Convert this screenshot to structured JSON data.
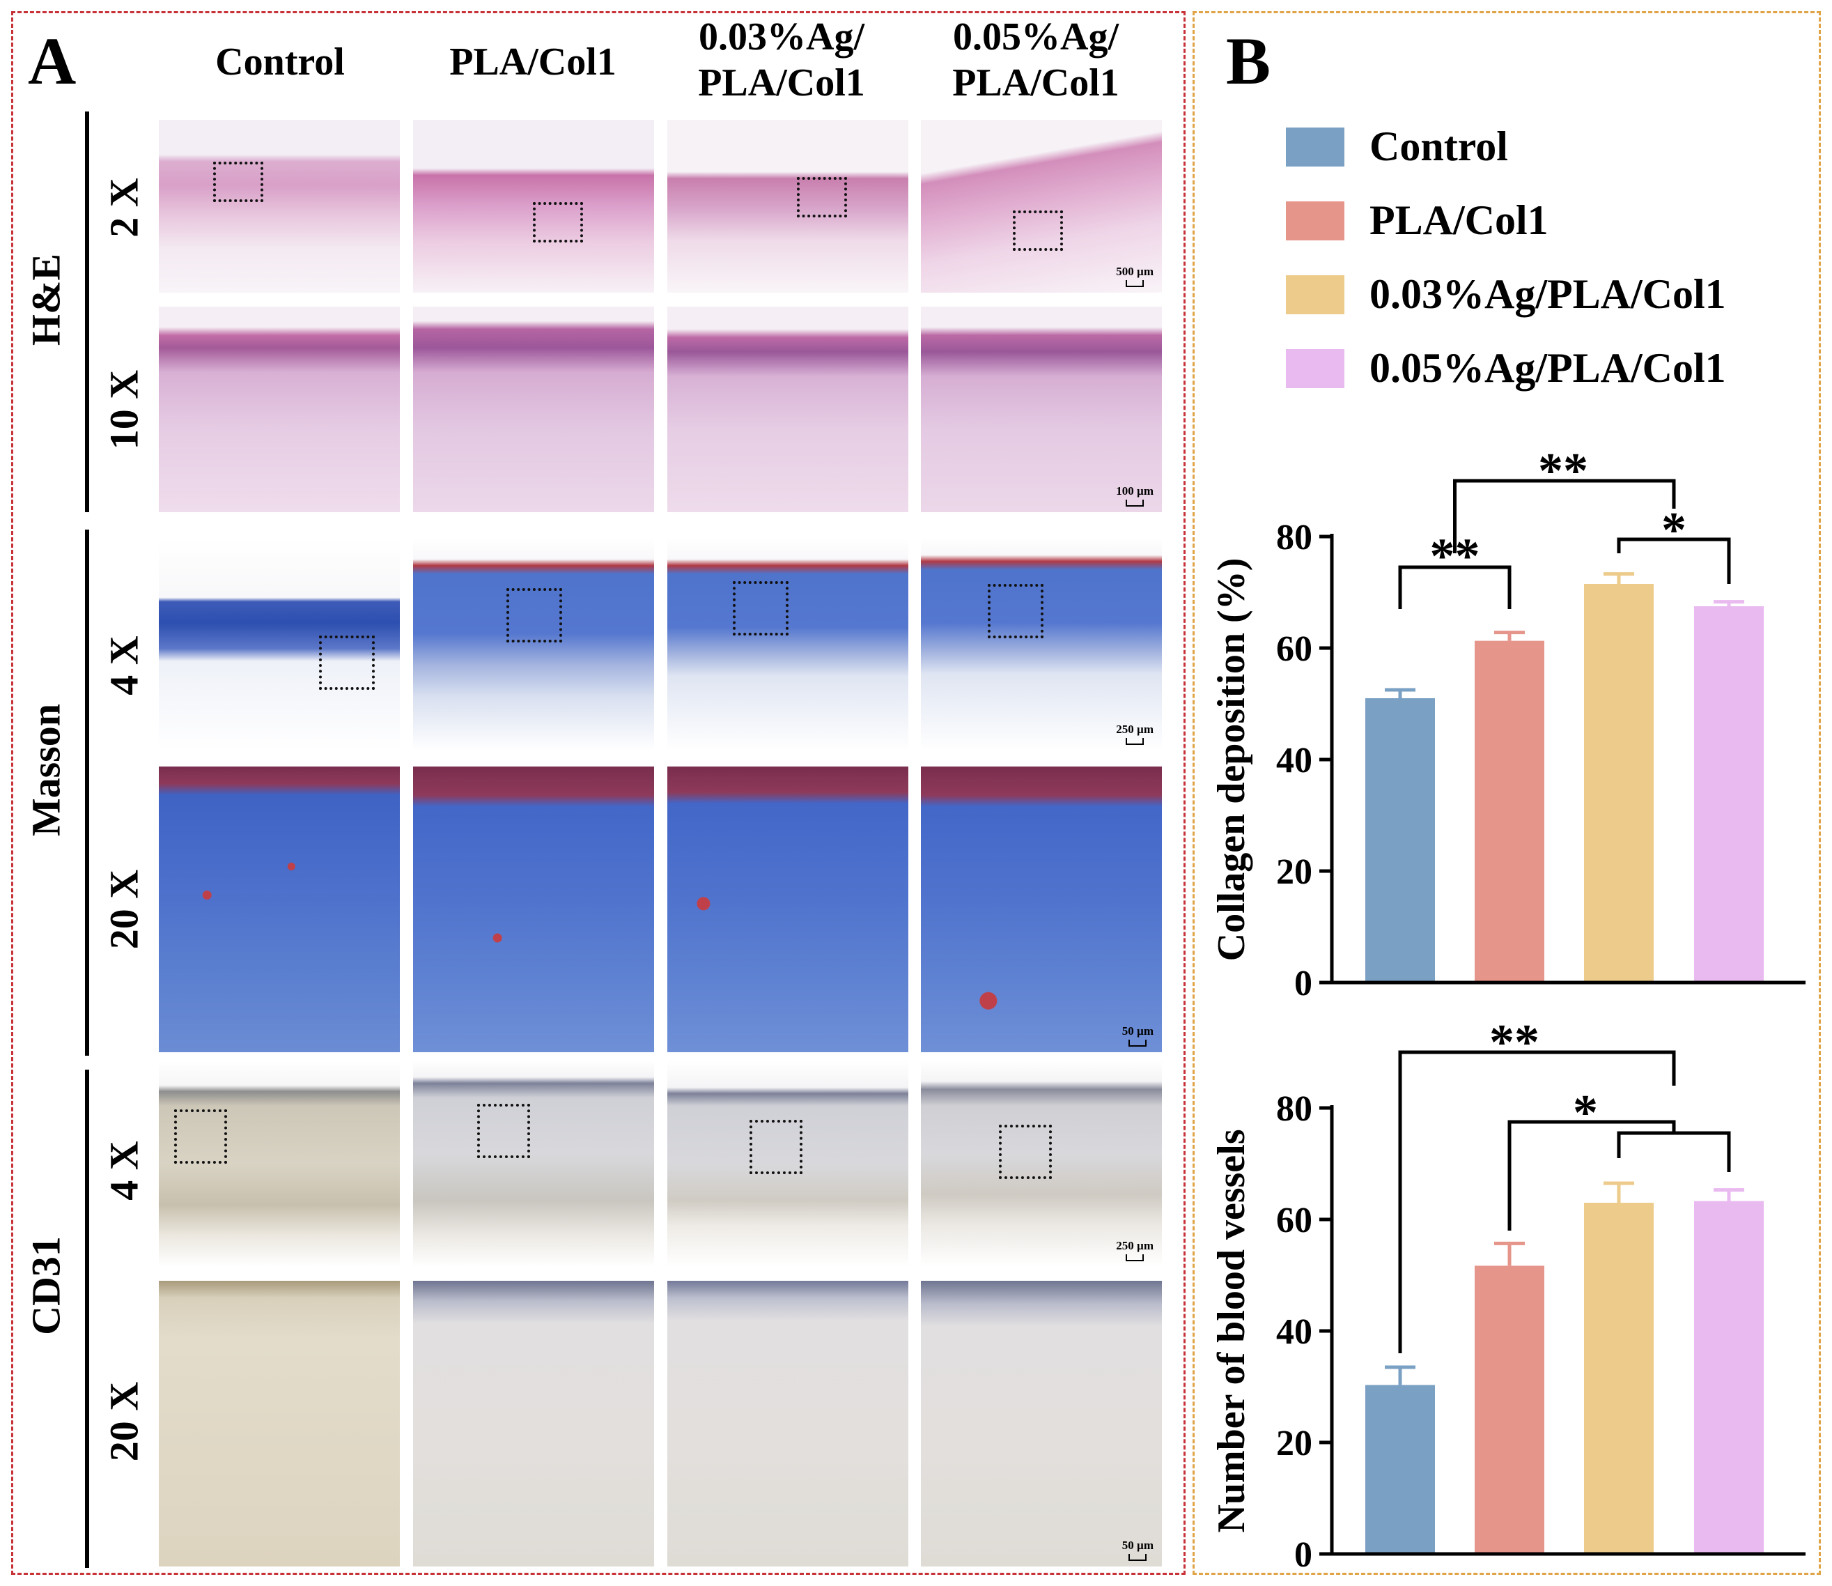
{
  "panel_a": {
    "letter": "A",
    "columns": [
      "Control",
      "PLA/Col1",
      "0.03%Ag/\nPLA/Col1",
      "0.05%Ag/\nPLA/Col1"
    ],
    "column_lines": [
      [
        "Control"
      ],
      [
        "PLA/Col1"
      ],
      [
        "0.03%Ag/",
        "PLA/Col1"
      ],
      [
        "0.05%Ag/",
        "PLA/Col1"
      ]
    ],
    "stains": [
      {
        "name": "H&E",
        "rows": [
          {
            "mag": "2 X",
            "scale": "500 µm"
          },
          {
            "mag": "10 X",
            "scale": "100 µm"
          }
        ]
      },
      {
        "name": "Masson",
        "rows": [
          {
            "mag": "4 X",
            "scale": "250 µm"
          },
          {
            "mag": "20 X",
            "scale": "50 µm"
          }
        ]
      },
      {
        "name": "CD31",
        "rows": [
          {
            "mag": "4 X",
            "scale": "250 µm"
          },
          {
            "mag": "20 X",
            "scale": "50 µm"
          }
        ]
      }
    ]
  },
  "panel_b": {
    "letter": "B",
    "legend": [
      {
        "label": "Control",
        "color": "#7aa0c4"
      },
      {
        "label": "PLA/Col1",
        "color": "#e6958a"
      },
      {
        "label": "0.03%Ag/PLA/Col1",
        "color": "#edcb8b"
      },
      {
        "label": "0.05%Ag/PLA/Col1",
        "color": "#e9baf0"
      }
    ]
  },
  "chart_data": [
    {
      "type": "bar",
      "categories": [
        "Control",
        "PLA/Col1",
        "0.03%Ag/PLA/Col1",
        "0.05%Ag/PLA/Col1"
      ],
      "values": [
        51,
        61.3,
        71.5,
        67.5
      ],
      "errors": [
        1.5,
        1.5,
        1.8,
        0.8
      ],
      "colors": [
        "#7aa0c4",
        "#e6958a",
        "#edcb8b",
        "#e9baf0"
      ],
      "xlabel": "",
      "ylabel": "Collagen deposition (%)",
      "ylim": [
        0,
        80
      ],
      "yticks": [
        0,
        20,
        40,
        60,
        80
      ],
      "significance": [
        {
          "from": 0,
          "to": 1,
          "label": "**"
        },
        {
          "from": 2,
          "to": 3,
          "label": "*"
        },
        {
          "from": "0-1",
          "to": "2-3",
          "label": "**"
        }
      ]
    },
    {
      "type": "bar",
      "categories": [
        "Control",
        "PLA/Col1",
        "0.03%Ag/PLA/Col1",
        "0.05%Ag/PLA/Col1"
      ],
      "values": [
        30.3,
        51.7,
        63,
        63.3
      ],
      "errors": [
        3.2,
        4,
        3.5,
        2
      ],
      "colors": [
        "#7aa0c4",
        "#e6958a",
        "#edcb8b",
        "#e9baf0"
      ],
      "xlabel": "",
      "ylabel": "Number of blood vessels",
      "ylim": [
        0,
        80
      ],
      "yticks": [
        0,
        20,
        40,
        60,
        80
      ],
      "significance": [
        {
          "from": 0,
          "to": "2-3",
          "label": "**"
        },
        {
          "from": 1,
          "to": "2-3",
          "label": "*"
        }
      ]
    }
  ]
}
